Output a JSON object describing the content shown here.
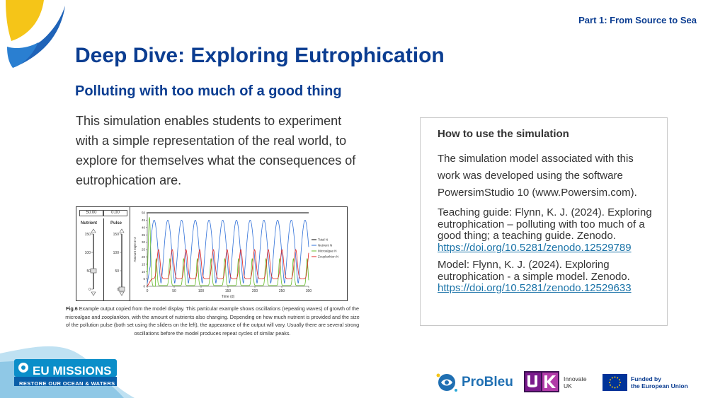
{
  "header": {
    "part_label": "Part 1: From Source to Sea",
    "title": "Deep Dive: Exploring Eutrophication",
    "subtitle": "Polluting with too much of a good thing"
  },
  "intro_text": "This simulation enables students to experiment with a simple representation of the real world, to explore for themselves what the consequences of eutrophication are.",
  "figure": {
    "value_box_1": "50.00",
    "value_box_2": "0.00",
    "slider_labels": [
      "Nutrient",
      "Pulse"
    ],
    "slider_ticks": [
      "150",
      "100",
      "50",
      "0"
    ],
    "slider_levels": {
      "nutrient": 50,
      "pulse": 0
    },
    "caption_bold": "Fig.6",
    "caption_text": " Example output copied from the model display. This particular example shows oscillations (repeating waves) of growth of the microalgae and zooplankton, with the amount of nutrients also changing. Depending on how much nutrient is provided and the size of the pollution pulse (both set using the sliders on the left), the appearance of the output will vary. Usually there are several strong oscillations before the model produces repeat cycles of similar peaks."
  },
  "chart_data": {
    "type": "line",
    "xlabel": "Time (d)",
    "ylabel": "Amount mgN m-3",
    "xlim": [
      0,
      300
    ],
    "ylim": [
      0,
      50
    ],
    "x_ticks": [
      0,
      50,
      100,
      150,
      200,
      250,
      300
    ],
    "y_ticks": [
      0,
      5,
      10,
      15,
      20,
      25,
      30,
      35,
      40,
      45,
      50
    ],
    "legend_position": "right",
    "series": [
      {
        "name": "Total N",
        "color": "#000000",
        "constant": 50
      },
      {
        "name": "Nutrient N",
        "color": "#2e6fd8",
        "period": 25.5,
        "min": 2,
        "max": 45
      },
      {
        "name": "Microalgae N",
        "color": "#66bb2a",
        "period": 25.5,
        "min": 0.5,
        "max": 19,
        "first_peak": 47
      },
      {
        "name": "Zooplankton N",
        "color": "#e02020",
        "period": 25.5,
        "min": 5,
        "max": 25
      }
    ]
  },
  "info_box": {
    "heading": "How to use the simulation",
    "para1": "The simulation model associated with this work was developed using the software PowersimStudio 10 (www.Powersim.com).",
    "para2_text": "Teaching guide: Flynn, K. J. (2024). Exploring eutrophication – polluting with too much of a good thing; a teaching guide. Zenodo.",
    "para2_link": "https://doi.org/10.5281/zenodo.12529789",
    "para3_text": "Model: Flynn, K. J. (2024). Exploring eutrophication - a simple model. Zenodo.",
    "para3_link": "https://doi.org/10.5281/zenodo.12529633"
  },
  "footer": {
    "missions_title": "EU MISSIONS",
    "missions_sub": "RESTORE OUR OCEAN & WATERS",
    "probleu": "ProBleu",
    "ukri_line1": "Innovate",
    "ukri_line2": "UK",
    "funded_line1": "Funded by",
    "funded_line2": "the European Union"
  },
  "colors": {
    "brand_blue": "#0b3d91",
    "link": "#1a73a8",
    "accent_yellow": "#f5c518",
    "ukri_purple": "#7a1a8c"
  }
}
